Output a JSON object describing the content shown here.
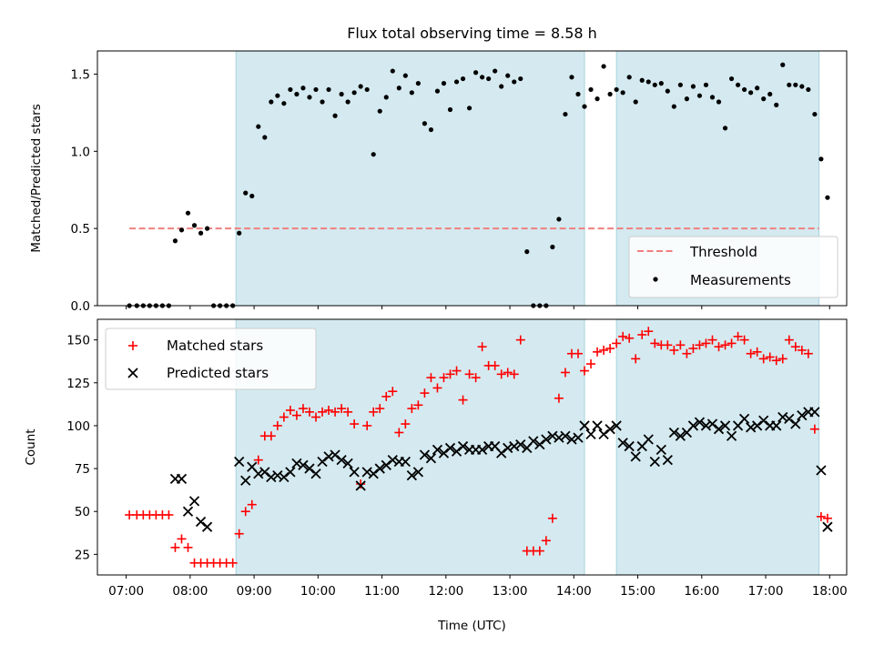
{
  "chart_data": [
    {
      "type": "scatter",
      "title": "Flux total observing time = 8.58 h",
      "ylabel": "Matched/Predicted stars",
      "xlabel": "",
      "xlim": [
        "06:33",
        "18:16"
      ],
      "ylim": [
        0,
        1.65
      ],
      "yticks": [
        "0.0",
        "0.5",
        "1.0",
        "1.5"
      ],
      "ytick_values": [
        0,
        0.5,
        1.0,
        1.5
      ],
      "shaded_intervals": [
        [
          "08:43",
          "14:10"
        ],
        [
          "14:40",
          "17:50"
        ]
      ],
      "threshold": {
        "value": 0.5,
        "x_range": [
          "07:03",
          "17:50"
        ],
        "color": "#f08080"
      },
      "legend": {
        "position": "lower right",
        "entries": [
          "Threshold",
          "Measurements"
        ]
      },
      "series": [
        {
          "name": "Measurements",
          "marker": "dot",
          "color": "#000000",
          "x": [
            "07:03",
            "07:10",
            "07:16",
            "07:22",
            "07:28",
            "07:34",
            "07:40",
            "07:46",
            "07:52",
            "07:58",
            "08:04",
            "08:10",
            "08:16",
            "08:22",
            "08:28",
            "08:34",
            "08:40",
            "08:46",
            "08:52",
            "08:58",
            "09:04",
            "09:10",
            "09:16",
            "09:22",
            "09:28",
            "09:34",
            "09:40",
            "09:46",
            "09:52",
            "09:58",
            "10:04",
            "10:10",
            "10:16",
            "10:22",
            "10:28",
            "10:34",
            "10:40",
            "10:46",
            "10:52",
            "10:58",
            "11:04",
            "11:10",
            "11:16",
            "11:22",
            "11:28",
            "11:34",
            "11:40",
            "11:46",
            "11:52",
            "11:58",
            "12:04",
            "12:10",
            "12:16",
            "12:22",
            "12:28",
            "12:34",
            "12:40",
            "12:46",
            "12:52",
            "12:58",
            "13:04",
            "13:10",
            "13:16",
            "13:22",
            "13:28",
            "13:34",
            "13:40",
            "13:46",
            "13:52",
            "13:58",
            "14:04",
            "14:10",
            "14:16",
            "14:22",
            "14:28",
            "14:34",
            "14:40",
            "14:46",
            "14:52",
            "14:58",
            "15:04",
            "15:10",
            "15:16",
            "15:22",
            "15:28",
            "15:34",
            "15:40",
            "15:46",
            "15:52",
            "15:58",
            "16:04",
            "16:10",
            "16:16",
            "16:22",
            "16:28",
            "16:34",
            "16:40",
            "16:46",
            "16:52",
            "16:58",
            "17:04",
            "17:10",
            "17:16",
            "17:22",
            "17:28",
            "17:34",
            "17:40",
            "17:46",
            "17:52",
            "17:58"
          ],
          "y": [
            0,
            0,
            0,
            0,
            0,
            0,
            0,
            0.42,
            0.49,
            0.6,
            0.52,
            0.47,
            0.5,
            0,
            0,
            0,
            0,
            0.47,
            0.73,
            0.71,
            1.16,
            1.09,
            1.32,
            1.36,
            1.31,
            1.4,
            1.37,
            1.41,
            1.35,
            1.4,
            1.32,
            1.4,
            1.23,
            1.37,
            1.32,
            1.38,
            1.42,
            1.4,
            0.98,
            1.26,
            1.35,
            1.52,
            1.41,
            1.49,
            1.38,
            1.44,
            1.18,
            1.14,
            1.39,
            1.44,
            1.27,
            1.45,
            1.47,
            1.28,
            1.51,
            1.48,
            1.47,
            1.52,
            1.42,
            1.49,
            1.45,
            1.47,
            0.35,
            0,
            0,
            0,
            0.38,
            0.56,
            1.24,
            1.48,
            1.37,
            1.29,
            1.4,
            1.34,
            1.55,
            1.37,
            1.4,
            1.38,
            1.48,
            1.32,
            1.46,
            1.45,
            1.43,
            1.44,
            1.39,
            1.29,
            1.43,
            1.34,
            1.42,
            1.36,
            1.43,
            1.35,
            1.32,
            1.15,
            1.47,
            1.43,
            1.4,
            1.38,
            1.41,
            1.34,
            1.37,
            1.3,
            1.56,
            1.43,
            1.43,
            1.42,
            1.4,
            1.24,
            0.95,
            0.7
          ]
        }
      ]
    },
    {
      "type": "scatter",
      "title": "",
      "ylabel": "Count",
      "xlabel": "Time (UTC)",
      "xlim": [
        "06:33",
        "18:16"
      ],
      "ylim": [
        13,
        162
      ],
      "yticks": [
        "25",
        "50",
        "75",
        "100",
        "125",
        "150"
      ],
      "ytick_values": [
        25,
        50,
        75,
        100,
        125,
        150
      ],
      "xticks": [
        "07:00",
        "08:00",
        "09:00",
        "10:00",
        "11:00",
        "12:00",
        "13:00",
        "14:00",
        "15:00",
        "16:00",
        "17:00",
        "18:00"
      ],
      "shaded_intervals": [
        [
          "08:43",
          "14:10"
        ],
        [
          "14:40",
          "17:50"
        ]
      ],
      "legend": {
        "position": "upper left",
        "entries": [
          "Matched stars",
          "Predicted stars"
        ]
      },
      "series": [
        {
          "name": "Matched stars",
          "marker": "plus",
          "color": "#ff0000",
          "x": [
            "07:03",
            "07:10",
            "07:16",
            "07:22",
            "07:28",
            "07:34",
            "07:40",
            "07:46",
            "07:52",
            "07:58",
            "08:04",
            "08:10",
            "08:16",
            "08:22",
            "08:28",
            "08:34",
            "08:40",
            "08:46",
            "08:52",
            "08:58",
            "09:04",
            "09:10",
            "09:16",
            "09:22",
            "09:28",
            "09:34",
            "09:40",
            "09:46",
            "09:52",
            "09:58",
            "10:04",
            "10:10",
            "10:16",
            "10:22",
            "10:28",
            "10:34",
            "10:40",
            "10:46",
            "10:52",
            "10:58",
            "11:04",
            "11:10",
            "11:16",
            "11:22",
            "11:28",
            "11:34",
            "11:40",
            "11:46",
            "11:52",
            "11:58",
            "12:04",
            "12:10",
            "12:16",
            "12:22",
            "12:28",
            "12:34",
            "12:40",
            "12:46",
            "12:52",
            "12:58",
            "13:04",
            "13:10",
            "13:16",
            "13:22",
            "13:28",
            "13:34",
            "13:40",
            "13:46",
            "13:52",
            "13:58",
            "14:04",
            "14:10",
            "14:16",
            "14:22",
            "14:28",
            "14:34",
            "14:40",
            "14:46",
            "14:52",
            "14:58",
            "15:04",
            "15:10",
            "15:16",
            "15:22",
            "15:28",
            "15:34",
            "15:40",
            "15:46",
            "15:52",
            "15:58",
            "16:04",
            "16:10",
            "16:16",
            "16:22",
            "16:28",
            "16:34",
            "16:40",
            "16:46",
            "16:52",
            "16:58",
            "17:04",
            "17:10",
            "17:16",
            "17:22",
            "17:28",
            "17:34",
            "17:40",
            "17:46",
            "17:52",
            "17:58"
          ],
          "y": [
            48,
            48,
            48,
            48,
            48,
            48,
            48,
            29,
            34,
            29,
            20,
            20,
            20,
            20,
            20,
            20,
            20,
            37,
            50,
            54,
            80,
            94,
            94,
            100,
            105,
            109,
            106,
            110,
            108,
            105,
            108,
            109,
            108,
            110,
            108,
            101,
            66,
            100,
            108,
            110,
            117,
            120,
            96,
            101,
            110,
            112,
            119,
            128,
            122,
            128,
            130,
            132,
            115,
            130,
            128,
            146,
            135,
            135,
            130,
            131,
            130,
            150,
            27,
            27,
            27,
            33,
            46,
            116,
            131,
            142,
            142,
            132,
            136,
            143,
            144,
            145,
            148,
            152,
            151,
            139,
            153,
            155,
            148,
            147,
            147,
            144,
            147,
            142,
            145,
            147,
            148,
            150,
            146,
            147,
            148,
            152,
            150,
            142,
            143,
            139,
            140,
            138,
            139,
            150,
            146,
            144,
            142,
            98,
            47,
            46
          ]
        },
        {
          "name": "Predicted stars",
          "marker": "x",
          "color": "#000000",
          "x": [
            "07:03",
            "07:10",
            "07:16",
            "07:22",
            "07:28",
            "07:34",
            "07:40",
            "07:46",
            "07:52",
            "07:58",
            "08:04",
            "08:10",
            "08:16",
            "08:22",
            "08:28",
            "08:34",
            "08:40",
            "08:46",
            "08:52",
            "08:58",
            "09:04",
            "09:10",
            "09:16",
            "09:22",
            "09:28",
            "09:34",
            "09:40",
            "09:46",
            "09:52",
            "09:58",
            "10:04",
            "10:10",
            "10:16",
            "10:22",
            "10:28",
            "10:34",
            "10:40",
            "10:46",
            "10:52",
            "10:58",
            "11:04",
            "11:10",
            "11:16",
            "11:22",
            "11:28",
            "11:34",
            "11:40",
            "11:46",
            "11:52",
            "11:58",
            "12:04",
            "12:10",
            "12:16",
            "12:22",
            "12:28",
            "12:34",
            "12:40",
            "12:46",
            "12:52",
            "12:58",
            "13:04",
            "13:10",
            "13:16",
            "13:22",
            "13:28",
            "13:34",
            "13:40",
            "13:46",
            "13:52",
            "13:58",
            "14:04",
            "14:10",
            "14:16",
            "14:22",
            "14:28",
            "14:34",
            "14:40",
            "14:46",
            "14:52",
            "14:58",
            "15:04",
            "15:10",
            "15:16",
            "15:22",
            "15:28",
            "15:34",
            "15:40",
            "15:46",
            "15:52",
            "15:58",
            "16:04",
            "16:10",
            "16:16",
            "16:22",
            "16:28",
            "16:34",
            "16:40",
            "16:46",
            "16:52",
            "16:58",
            "17:04",
            "17:10",
            "17:16",
            "17:22",
            "17:28",
            "17:34",
            "17:40",
            "17:46",
            "17:52",
            "17:58"
          ],
          "y": [
            null,
            null,
            null,
            null,
            null,
            null,
            null,
            69,
            69,
            50,
            56,
            44,
            41,
            null,
            null,
            null,
            null,
            79,
            68,
            76,
            72,
            73,
            70,
            71,
            70,
            73,
            78,
            77,
            75,
            72,
            79,
            82,
            83,
            80,
            78,
            73,
            65,
            73,
            72,
            75,
            77,
            80,
            79,
            79,
            71,
            73,
            83,
            81,
            86,
            84,
            87,
            85,
            88,
            86,
            86,
            86,
            88,
            88,
            84,
            87,
            88,
            89,
            87,
            91,
            89,
            92,
            94,
            93,
            94,
            92,
            93,
            100,
            95,
            100,
            95,
            98,
            100,
            90,
            88,
            82,
            88,
            92,
            79,
            86,
            80,
            96,
            94,
            96,
            100,
            102,
            100,
            101,
            98,
            100,
            94,
            100,
            104,
            99,
            100,
            103,
            100,
            100,
            105,
            104,
            101,
            106,
            108,
            108,
            74,
            41
          ]
        }
      ]
    }
  ]
}
